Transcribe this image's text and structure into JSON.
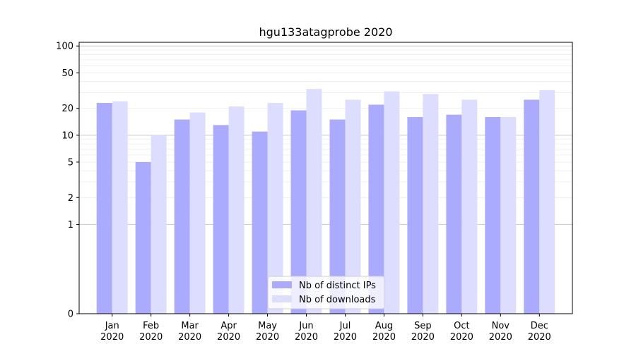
{
  "chart_data": {
    "type": "bar",
    "title": "hgu133atagprobe 2020",
    "xlabel": "",
    "ylabel": "",
    "yscale": "symlog",
    "ylim": [
      0,
      110
    ],
    "yticks": [
      0,
      1,
      2,
      5,
      10,
      20,
      50,
      100
    ],
    "yticklabels": [
      "0",
      "1",
      "2",
      "5",
      "10",
      "20",
      "50",
      "100"
    ],
    "grid": true,
    "legend_position": "lower center",
    "categories": [
      "Jan\n2020",
      "Feb\n2020",
      "Mar\n2020",
      "Apr\n2020",
      "May\n2020",
      "Jun\n2020",
      "Jul\n2020",
      "Aug\n2020",
      "Sep\n2020",
      "Oct\n2020",
      "Nov\n2020",
      "Dec\n2020"
    ],
    "category_lines": [
      [
        "Jan",
        "2020"
      ],
      [
        "Feb",
        "2020"
      ],
      [
        "Mar",
        "2020"
      ],
      [
        "Apr",
        "2020"
      ],
      [
        "May",
        "2020"
      ],
      [
        "Jun",
        "2020"
      ],
      [
        "Jul",
        "2020"
      ],
      [
        "Aug",
        "2020"
      ],
      [
        "Sep",
        "2020"
      ],
      [
        "Oct",
        "2020"
      ],
      [
        "Nov",
        "2020"
      ],
      [
        "Dec",
        "2020"
      ]
    ],
    "series": [
      {
        "name": "Nb of distinct IPs",
        "color": "#aaaaff",
        "values": [
          23,
          5,
          15,
          13,
          11,
          19,
          15,
          22,
          16,
          17,
          16,
          25
        ]
      },
      {
        "name": "Nb of downloads",
        "color": "#ddddff",
        "values": [
          24,
          10,
          18,
          21,
          23,
          33,
          25,
          31,
          29,
          25,
          16,
          32
        ]
      }
    ]
  }
}
